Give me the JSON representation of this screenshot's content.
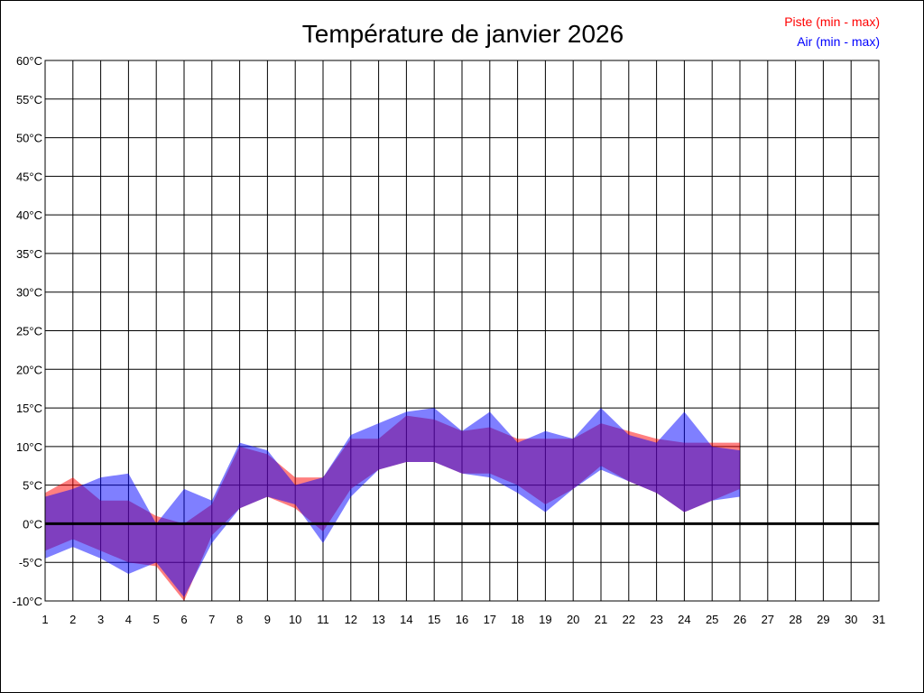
{
  "chart_data": {
    "type": "area",
    "title": "Température de janvier 2026",
    "x_ticks": [
      "1",
      "2",
      "3",
      "4",
      "5",
      "6",
      "7",
      "8",
      "9",
      "10",
      "11",
      "12",
      "13",
      "14",
      "15",
      "16",
      "17",
      "18",
      "19",
      "20",
      "21",
      "22",
      "23",
      "24",
      "25",
      "26",
      "27",
      "28",
      "29",
      "30",
      "31"
    ],
    "y_ticks": [
      "-10°C",
      "-5°C",
      "0°C",
      "5°C",
      "10°C",
      "15°C",
      "20°C",
      "25°C",
      "30°C",
      "35°C",
      "40°C",
      "45°C",
      "50°C",
      "55°C",
      "60°C"
    ],
    "xlim": [
      1,
      31
    ],
    "ylim": [
      -10,
      60
    ],
    "grid": true,
    "legend_position": "top-right",
    "series": [
      {
        "name": "Piste (min - max)",
        "color": "#ff0000",
        "x": [
          1,
          2,
          3,
          4,
          5,
          6,
          7,
          8,
          9,
          10,
          11,
          12,
          13,
          14,
          15,
          16,
          17,
          18,
          19,
          20,
          21,
          22,
          23,
          24,
          25,
          26
        ],
        "min": [
          -3.5,
          -2,
          -3.5,
          -5,
          -5.5,
          -10,
          -1.5,
          2,
          3.5,
          2,
          -1,
          4.5,
          7,
          8,
          8,
          6.5,
          6.5,
          5,
          2.5,
          4.5,
          7.5,
          5.5,
          4,
          1.5,
          3,
          4.5
        ],
        "max": [
          4,
          6,
          3,
          3,
          1,
          0,
          2.5,
          10,
          9,
          6,
          6,
          11,
          11,
          14,
          13.5,
          12,
          12.5,
          11,
          11,
          11,
          13,
          12,
          11,
          10.5,
          10.5,
          10.5
        ]
      },
      {
        "name": "Air (min - max)",
        "color": "#0000ff",
        "x": [
          1,
          2,
          3,
          4,
          5,
          6,
          7,
          8,
          9,
          10,
          11,
          12,
          13,
          14,
          15,
          16,
          17,
          18,
          19,
          20,
          21,
          22,
          23,
          24,
          25,
          26
        ],
        "min": [
          -4.5,
          -3,
          -4.5,
          -6.5,
          -5,
          -9.5,
          -2.5,
          2,
          3.5,
          2.5,
          -2.5,
          3.5,
          7,
          8,
          8,
          6.5,
          6,
          4,
          1.5,
          4.5,
          7,
          5.5,
          4,
          1.5,
          3,
          3.5
        ],
        "max": [
          3.5,
          4.5,
          6,
          6.5,
          0,
          4.5,
          3,
          10.5,
          9.5,
          5,
          6,
          11.5,
          13,
          14.5,
          15,
          12,
          14.5,
          10.5,
          12,
          11,
          15,
          11.5,
          10.5,
          14.5,
          10,
          9.5
        ]
      }
    ]
  }
}
